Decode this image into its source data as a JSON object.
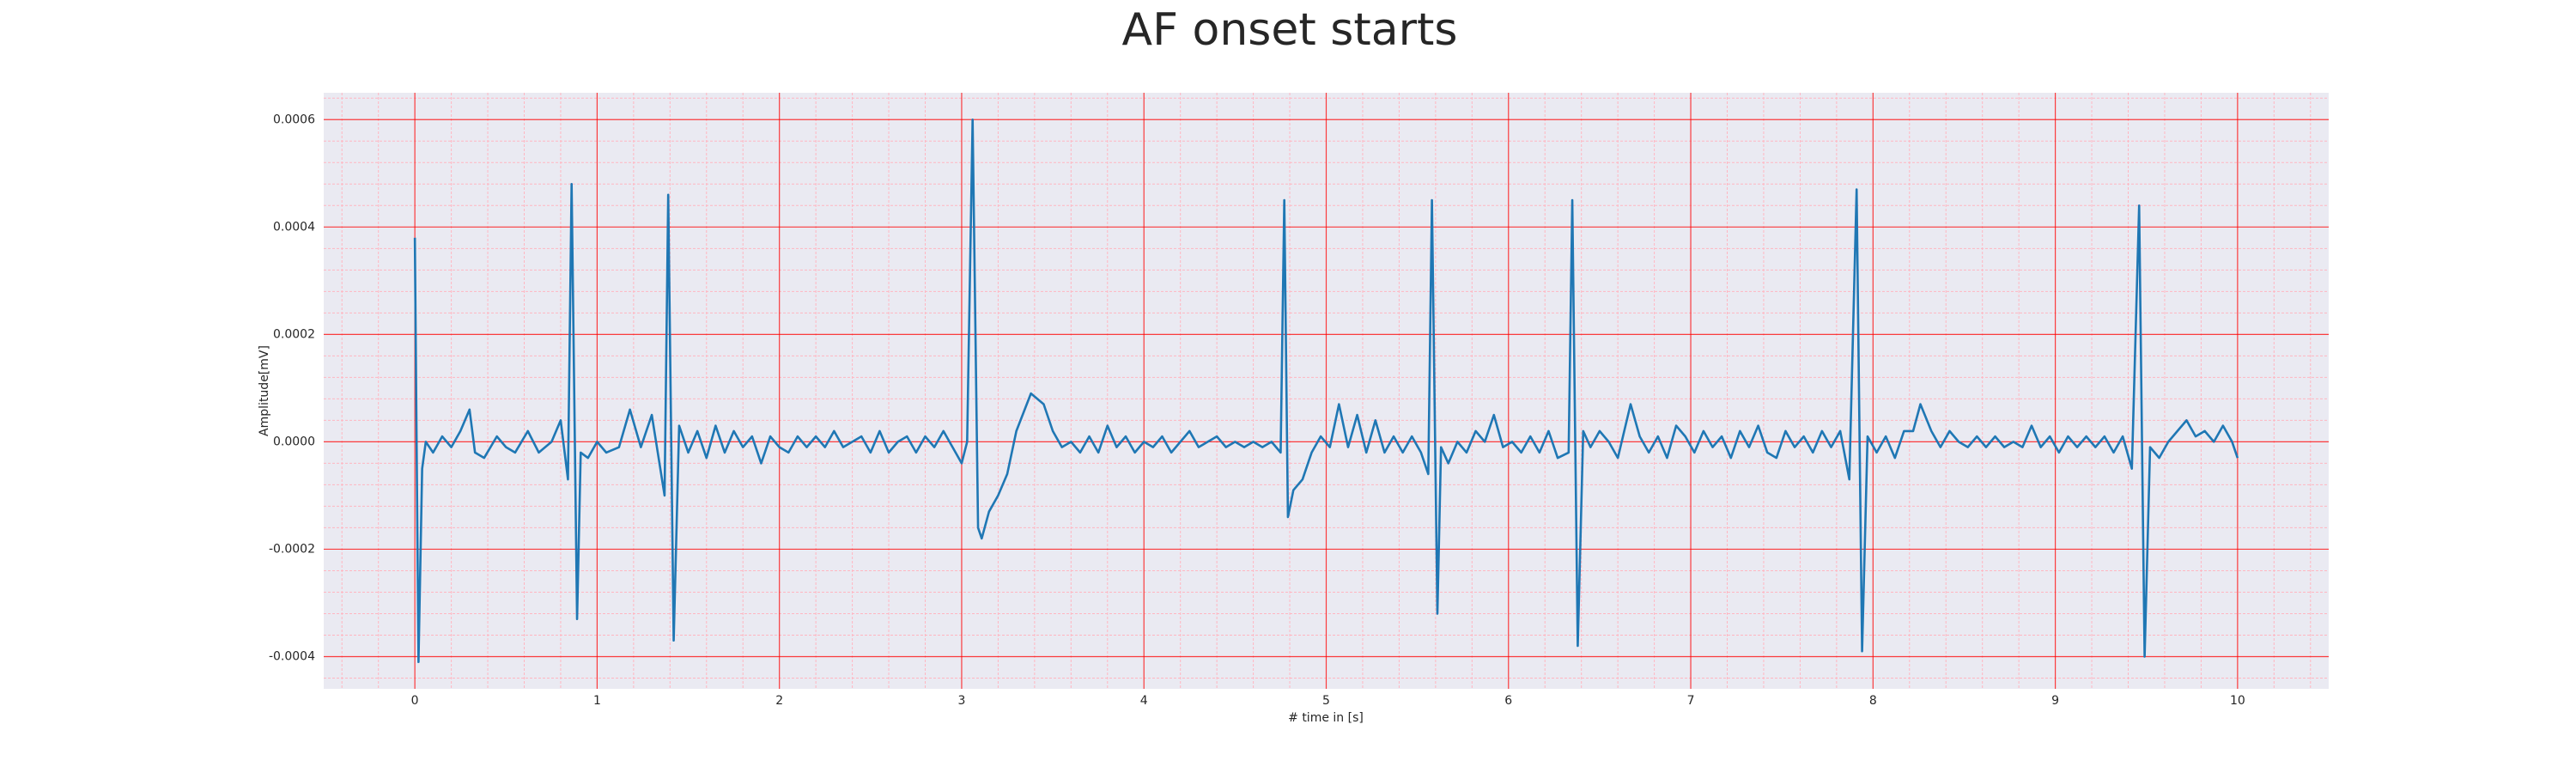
{
  "chart_data": {
    "type": "line",
    "title": "AF onset starts",
    "xlabel": "# time in [s]",
    "ylabel": "Amplitude[mV]",
    "xlim": [
      -0.5,
      10.5
    ],
    "ylim": [
      -0.00046,
      0.00065
    ],
    "xticks": [
      0,
      1,
      2,
      3,
      4,
      5,
      6,
      7,
      8,
      9,
      10
    ],
    "yticks": [
      -0.0004,
      -0.0002,
      {
        "value": 0,
        "label": "0.0000"
      },
      0.0002,
      0.0004,
      0.0006
    ],
    "xminorticks": [
      -0.4,
      -0.2,
      0.2,
      0.4,
      0.6,
      0.8,
      1.2,
      1.4,
      1.6,
      1.8,
      2.2,
      2.4,
      2.6,
      2.8,
      3.2,
      3.4,
      3.6,
      3.8,
      4.2,
      4.4,
      4.6,
      4.8,
      5.2,
      5.4,
      5.6,
      5.8,
      6.2,
      6.4,
      6.6,
      6.8,
      7.2,
      7.4,
      7.6,
      7.8,
      8.2,
      8.4,
      8.6,
      8.8,
      9.2,
      9.4,
      9.6,
      9.8,
      10.2,
      10.4
    ],
    "yminorticks": [
      -0.00044,
      -0.00036,
      -0.00032,
      -0.00028,
      -0.00024,
      -0.00016,
      -0.00012,
      -8e-05,
      -4e-05,
      4e-05,
      8e-05,
      0.00012,
      0.00016,
      0.00024,
      0.00028,
      0.00032,
      0.00036,
      0.00044,
      0.00048,
      0.00052,
      0.00056,
      0.00064
    ],
    "grid": true,
    "background": "#eaeaf2",
    "grid_color": "#ff0000",
    "minor_grid_color": "#ffb6c1",
    "series": [
      {
        "color": "#1f77b4",
        "x": [
          0,
          0.02,
          0.04,
          0.06,
          0.1,
          0.15,
          0.2,
          0.25,
          0.3,
          0.33,
          0.38,
          0.45,
          0.5,
          0.55,
          0.62,
          0.68,
          0.75,
          0.8,
          0.84,
          0.86,
          0.89,
          0.91,
          0.95,
          1.0,
          1.05,
          1.12,
          1.18,
          1.24,
          1.3,
          1.37,
          1.39,
          1.42,
          1.45,
          1.5,
          1.55,
          1.6,
          1.65,
          1.7,
          1.75,
          1.8,
          1.85,
          1.9,
          1.95,
          2.0,
          2.05,
          2.1,
          2.15,
          2.2,
          2.25,
          2.3,
          2.35,
          2.4,
          2.45,
          2.5,
          2.55,
          2.6,
          2.65,
          2.7,
          2.75,
          2.8,
          2.85,
          2.9,
          2.95,
          3.0,
          3.03,
          3.06,
          3.09,
          3.11,
          3.15,
          3.2,
          3.25,
          3.3,
          3.38,
          3.45,
          3.5,
          3.55,
          3.6,
          3.65,
          3.7,
          3.75,
          3.8,
          3.85,
          3.9,
          3.95,
          4.0,
          4.05,
          4.1,
          4.15,
          4.2,
          4.25,
          4.3,
          4.35,
          4.4,
          4.45,
          4.5,
          4.55,
          4.6,
          4.65,
          4.7,
          4.75,
          4.77,
          4.79,
          4.82,
          4.87,
          4.92,
          4.97,
          5.02,
          5.07,
          5.12,
          5.17,
          5.22,
          5.27,
          5.32,
          5.37,
          5.42,
          5.47,
          5.52,
          5.56,
          5.58,
          5.61,
          5.63,
          5.67,
          5.72,
          5.77,
          5.82,
          5.87,
          5.92,
          5.97,
          6.02,
          6.07,
          6.12,
          6.17,
          6.22,
          6.27,
          6.33,
          6.35,
          6.38,
          6.41,
          6.45,
          6.5,
          6.55,
          6.6,
          6.67,
          6.72,
          6.77,
          6.82,
          6.87,
          6.92,
          6.97,
          7.02,
          7.07,
          7.12,
          7.17,
          7.22,
          7.27,
          7.32,
          7.37,
          7.42,
          7.47,
          7.52,
          7.57,
          7.62,
          7.67,
          7.72,
          7.77,
          7.82,
          7.87,
          7.91,
          7.94,
          7.97,
          8.02,
          8.07,
          8.12,
          8.17,
          8.22,
          8.26,
          8.32,
          8.37,
          8.42,
          8.47,
          8.52,
          8.57,
          8.62,
          8.67,
          8.72,
          8.77,
          8.82,
          8.87,
          8.92,
          8.97,
          9.02,
          9.07,
          9.12,
          9.17,
          9.22,
          9.27,
          9.32,
          9.37,
          9.42,
          9.46,
          9.49,
          9.52,
          9.57,
          9.62,
          9.67,
          9.72,
          9.77,
          9.82,
          9.87,
          9.92,
          9.97,
          10.0
        ],
        "values": [
          0.00038,
          -0.00041,
          -5e-05,
          0,
          -2e-05,
          1e-05,
          -1e-05,
          2e-05,
          6e-05,
          -2e-05,
          -3e-05,
          1e-05,
          -1e-05,
          -2e-05,
          2e-05,
          -2e-05,
          0,
          4e-05,
          -7e-05,
          0.00048,
          -0.00033,
          -2e-05,
          -3e-05,
          0,
          -2e-05,
          -1e-05,
          6e-05,
          -1e-05,
          5e-05,
          -0.0001,
          0.00046,
          -0.00037,
          3e-05,
          -2e-05,
          2e-05,
          -3e-05,
          3e-05,
          -2e-05,
          2e-05,
          -1e-05,
          1e-05,
          -4e-05,
          1e-05,
          -1e-05,
          -2e-05,
          1e-05,
          -1e-05,
          1e-05,
          -1e-05,
          2e-05,
          -1e-05,
          0,
          1e-05,
          -2e-05,
          2e-05,
          -2e-05,
          0,
          1e-05,
          -2e-05,
          1e-05,
          -1e-05,
          2e-05,
          -1e-05,
          -4e-05,
          0,
          0.0006,
          -0.00016,
          -0.00018,
          -0.00013,
          -0.0001,
          -6e-05,
          2e-05,
          9e-05,
          7e-05,
          2e-05,
          -1e-05,
          0,
          -2e-05,
          1e-05,
          -2e-05,
          3e-05,
          -1e-05,
          1e-05,
          -2e-05,
          0,
          -1e-05,
          1e-05,
          -2e-05,
          0,
          2e-05,
          -1e-05,
          0,
          1e-05,
          -1e-05,
          0,
          -1e-05,
          0,
          -1e-05,
          0,
          -2e-05,
          0.00045,
          -0.00014,
          -9e-05,
          -7e-05,
          -2e-05,
          1e-05,
          -1e-05,
          7e-05,
          -1e-05,
          5e-05,
          -2e-05,
          4e-05,
          -2e-05,
          1e-05,
          -2e-05,
          1e-05,
          -2e-05,
          -6e-05,
          0.00045,
          -0.00032,
          -1e-05,
          -4e-05,
          0,
          -2e-05,
          2e-05,
          0,
          5e-05,
          -1e-05,
          0,
          -2e-05,
          1e-05,
          -2e-05,
          2e-05,
          -3e-05,
          -2e-05,
          0.00045,
          -0.00038,
          2e-05,
          -1e-05,
          2e-05,
          0,
          -3e-05,
          7e-05,
          1e-05,
          -2e-05,
          1e-05,
          -3e-05,
          3e-05,
          1e-05,
          -2e-05,
          2e-05,
          -1e-05,
          1e-05,
          -3e-05,
          2e-05,
          -1e-05,
          3e-05,
          -2e-05,
          -3e-05,
          2e-05,
          -1e-05,
          1e-05,
          -2e-05,
          2e-05,
          -1e-05,
          2e-05,
          -7e-05,
          0.00047,
          -0.00039,
          1e-05,
          -2e-05,
          1e-05,
          -3e-05,
          2e-05,
          2e-05,
          7e-05,
          2e-05,
          -1e-05,
          2e-05,
          0,
          -1e-05,
          1e-05,
          -1e-05,
          1e-05,
          -1e-05,
          0,
          -1e-05,
          3e-05,
          -1e-05,
          1e-05,
          -2e-05,
          1e-05,
          -1e-05,
          1e-05,
          -1e-05,
          1e-05,
          -2e-05,
          1e-05,
          -5e-05,
          0.00044,
          -0.0004,
          -1e-05,
          -3e-05,
          0,
          2e-05,
          4e-05,
          1e-05,
          2e-05,
          0,
          3e-05,
          0,
          -3e-05
        ]
      }
    ]
  }
}
